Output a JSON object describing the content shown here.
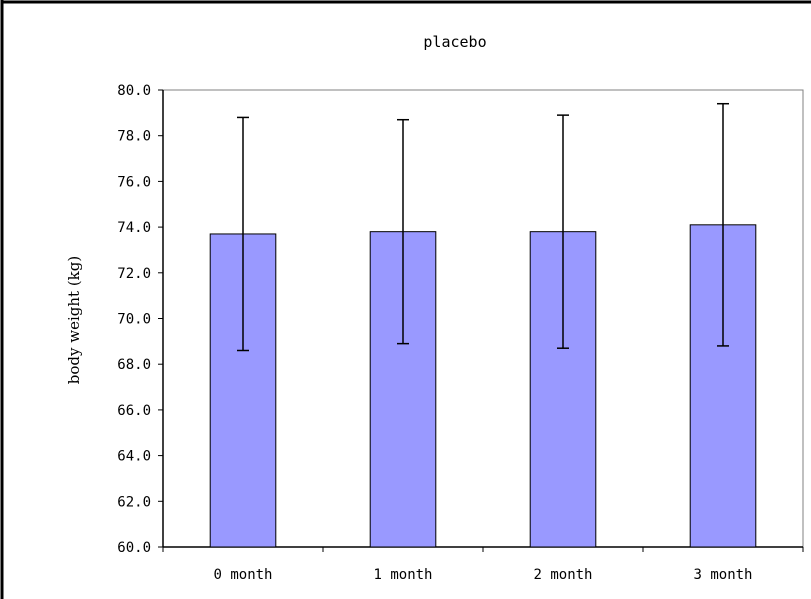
{
  "chart_data": {
    "type": "bar",
    "title": "placebo",
    "xlabel": "",
    "ylabel": "body weight (kg)",
    "categories": [
      "0 month",
      "1 month",
      "2 month",
      "3 month"
    ],
    "series": [
      {
        "values": [
          73.7,
          73.8,
          73.8,
          74.1
        ],
        "error": [
          5.1,
          4.9,
          5.1,
          5.3
        ]
      }
    ],
    "ylim": [
      60.0,
      80.0
    ],
    "yticks": [
      "60.0",
      "62.0",
      "64.0",
      "66.0",
      "68.0",
      "70.0",
      "72.0",
      "74.0",
      "76.0",
      "78.0",
      "80.0"
    ],
    "grid": false,
    "legend": "none",
    "bar_color": "#9999ff",
    "bar_edge_color": "#000000",
    "frame_color": "#808080"
  }
}
